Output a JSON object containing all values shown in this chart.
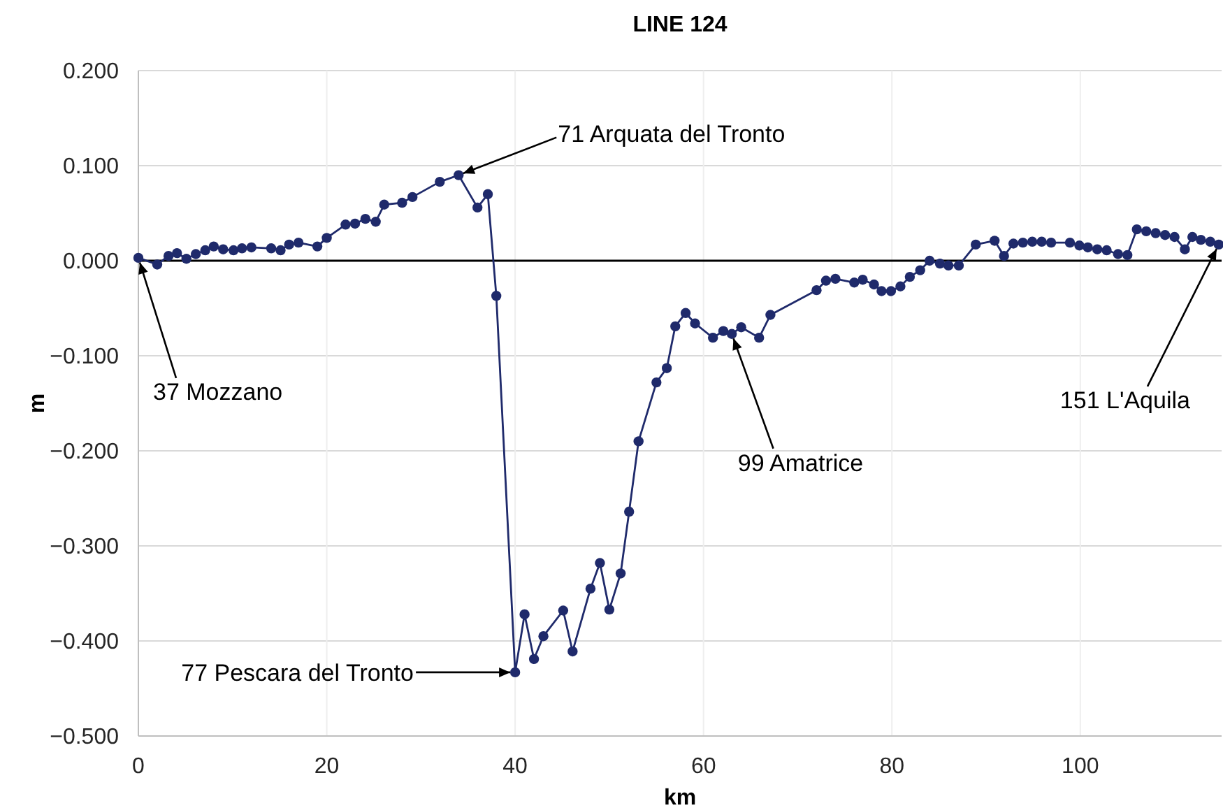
{
  "chart_data": {
    "type": "line",
    "title": "LINE 124",
    "xlabel": "km",
    "ylabel": "m",
    "x": [
      0,
      2,
      3.2,
      4.1,
      5.1,
      6.1,
      7.1,
      8,
      9,
      10.1,
      11,
      12,
      14.1,
      15.1,
      16,
      17,
      19,
      20,
      22,
      23,
      24.1,
      25.2,
      26.1,
      28,
      29.1,
      32,
      34,
      36,
      37.1,
      38,
      40,
      41,
      42,
      43,
      45.1,
      46.1,
      48,
      49,
      50,
      51.2,
      52.1,
      53.1,
      55,
      56.1,
      57,
      58.1,
      59.1,
      61,
      62.1,
      63,
      64,
      65.9,
      67.1,
      72,
      73,
      74,
      76,
      76.9,
      78.1,
      78.9,
      79.9,
      80.9,
      81.9,
      83,
      84,
      85.1,
      86,
      87.1,
      88.9,
      90.9,
      91.9,
      92.9,
      93.9,
      94.9,
      95.9,
      96.9,
      98.9,
      99.9,
      100.8,
      101.8,
      102.8,
      104,
      105,
      106,
      107,
      108,
      109,
      110,
      111.1,
      111.9,
      112.8,
      113.8,
      114.7
    ],
    "series": [
      {
        "color": "#1f2a6b",
        "values": [
          0.003,
          -0.004,
          0.005,
          0.008,
          0.002,
          0.007,
          0.011,
          0.015,
          0.012,
          0.011,
          0.013,
          0.014,
          0.013,
          0.011,
          0.017,
          0.019,
          0.015,
          0.024,
          0.038,
          0.039,
          0.044,
          0.041,
          0.059,
          0.061,
          0.067,
          0.083,
          0.09,
          0.056,
          0.07,
          -0.037,
          -0.433,
          -0.372,
          -0.419,
          -0.395,
          -0.368,
          -0.411,
          -0.345,
          -0.318,
          -0.367,
          -0.329,
          -0.264,
          -0.19,
          -0.128,
          -0.113,
          -0.069,
          -0.055,
          -0.066,
          -0.081,
          -0.074,
          -0.077,
          -0.07,
          -0.081,
          -0.057,
          -0.031,
          -0.021,
          -0.019,
          -0.023,
          -0.02,
          -0.025,
          -0.032,
          -0.032,
          -0.027,
          -0.017,
          -0.01,
          0,
          -0.003,
          -0.005,
          -0.005,
          0.017,
          0.021,
          0.005,
          0.018,
          0.019,
          0.02,
          0.02,
          0.019,
          0.019,
          0.016,
          0.014,
          0.012,
          0.011,
          0.007,
          0.006,
          0.033,
          0.031,
          0.029,
          0.027,
          0.025,
          0.012,
          0.025,
          0.022,
          0.02,
          0.017
        ]
      }
    ],
    "xlim": [
      0,
      115
    ],
    "xticks": [
      0,
      20,
      40,
      60,
      80,
      100
    ],
    "ylim": [
      -0.5,
      0.2
    ],
    "yticks": [
      {
        "value": -0.5,
        "label": "−0.500"
      },
      {
        "value": -0.4,
        "label": "−0.400"
      },
      {
        "value": -0.3,
        "label": "−0.300"
      },
      {
        "value": -0.2,
        "label": "−0.200"
      },
      {
        "value": -0.1,
        "label": "−0.100"
      },
      {
        "value": 0,
        "label": "0.000"
      },
      {
        "value": 0.1,
        "label": "0.100"
      },
      {
        "value": 0.2,
        "label": "0.200"
      }
    ],
    "grid": true,
    "marker": "circle",
    "line_style": "solid",
    "ref_lines": [
      {
        "axis": "y",
        "value": 0,
        "color": "#000000"
      }
    ],
    "annotations": [
      {
        "text": "37 Mozzano",
        "x": 0,
        "y": 0.003
      },
      {
        "text": "71 Arquata del Tronto",
        "x": 34,
        "y": 0.09
      },
      {
        "text": "77 Pescara del Tronto",
        "x": 40,
        "y": -0.433
      },
      {
        "text": "99 Amatrice",
        "x": 63,
        "y": -0.077
      },
      {
        "text": "151 L'Aquila",
        "x": 114.7,
        "y": 0.017
      }
    ]
  }
}
